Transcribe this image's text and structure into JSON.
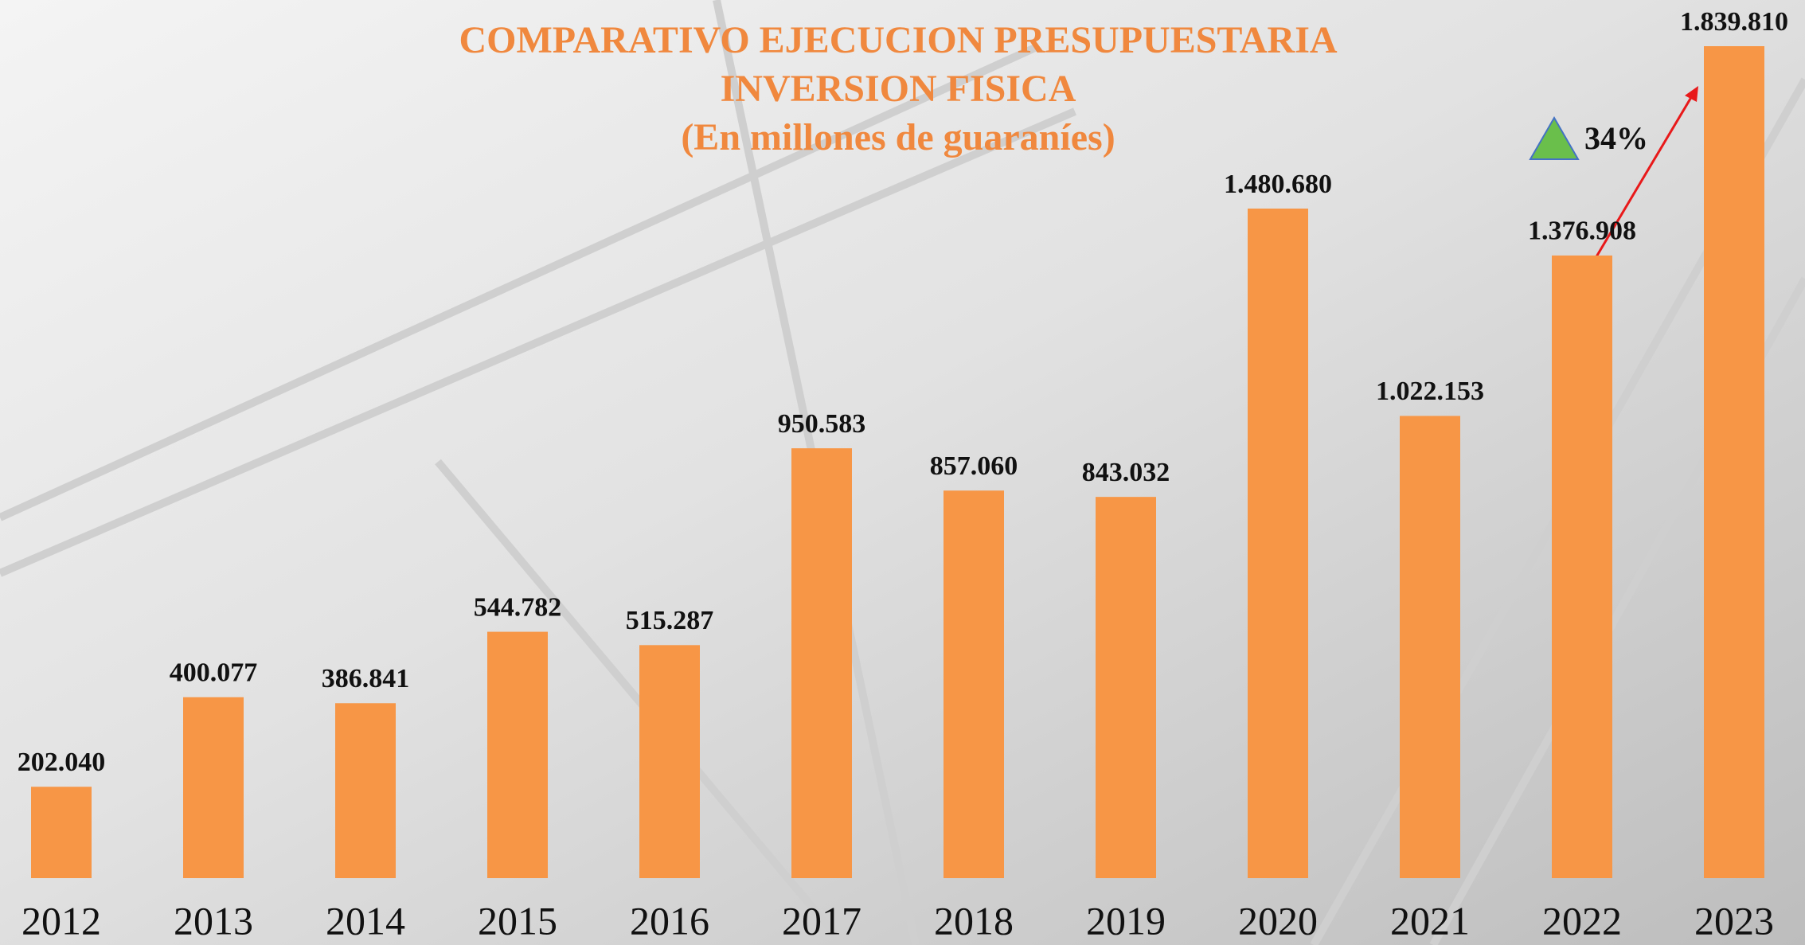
{
  "chart_data": {
    "type": "bar",
    "title": [
      "COMPARATIVO EJECUCION PRESUPUESTARIA",
      "INVERSION FISICA",
      "(En millones de guaraníes)"
    ],
    "categories": [
      "2012",
      "2013",
      "2014",
      "2015",
      "2016",
      "2017",
      "2018",
      "2019",
      "2020",
      "2021",
      "2022",
      "2023"
    ],
    "values": [
      202040,
      400077,
      386841,
      544782,
      515287,
      950583,
      857060,
      843032,
      1480680,
      1022153,
      1376908,
      1839810
    ],
    "value_labels": [
      "202.040",
      "400.077",
      "386.841",
      "544.782",
      "515.287",
      "950.583",
      "857.060",
      "843.032",
      "1.480.680",
      "1.022.153",
      "1.376.908",
      "1.839.810"
    ],
    "color": "#f79646",
    "annotation": "34%"
  }
}
